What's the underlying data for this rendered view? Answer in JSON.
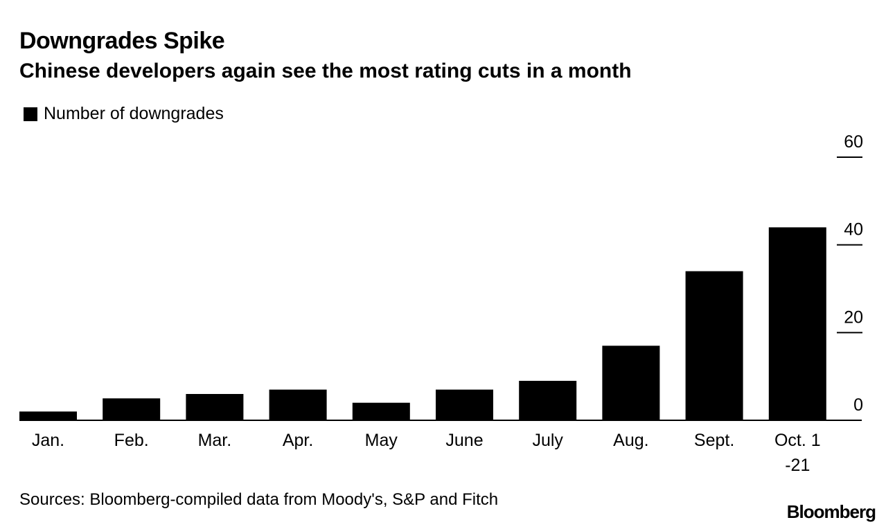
{
  "header": {
    "title": "Downgrades Spike",
    "subtitle": "Chinese developers again see the most rating cuts in a month"
  },
  "legend": {
    "label": "Number of downgrades",
    "color": "#000000"
  },
  "footer": {
    "source": "Sources: Bloomberg-compiled data from Moody's, S&P and Fitch",
    "brand": "Bloomberg"
  },
  "chart_data": {
    "type": "bar",
    "title": "Downgrades Spike",
    "subtitle": "Chinese developers again see the most rating cuts in a month",
    "categories": [
      [
        "Jan."
      ],
      [
        "Feb."
      ],
      [
        "Mar."
      ],
      [
        "Apr."
      ],
      [
        "May"
      ],
      [
        "June"
      ],
      [
        "July"
      ],
      [
        "Aug."
      ],
      [
        "Sept."
      ],
      [
        "Oct. 1",
        "-21"
      ]
    ],
    "series": [
      {
        "name": "Number of downgrades",
        "values": [
          2,
          5,
          6,
          7,
          4,
          7,
          9,
          17,
          34,
          44
        ],
        "color": "#000000"
      }
    ],
    "y_axis": {
      "min": 0,
      "max": 60,
      "ticks": [
        0,
        20,
        40,
        60
      ],
      "position": "right"
    },
    "grid": false,
    "legend_position": "top-left"
  }
}
